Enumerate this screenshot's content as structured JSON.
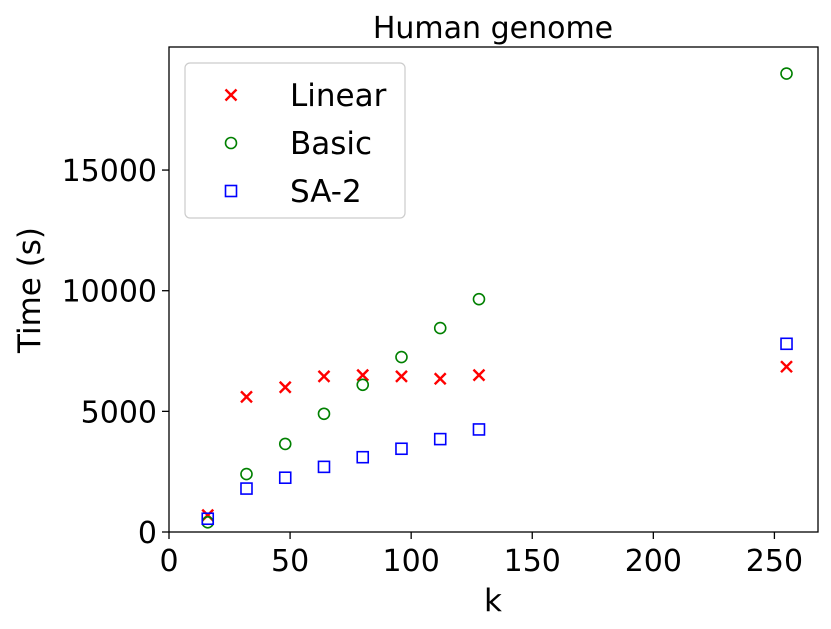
{
  "chart_data": {
    "type": "scatter",
    "title": "Human genome",
    "xlabel": "k",
    "ylabel": "Time (s)",
    "xlim": [
      0,
      268
    ],
    "ylim": [
      0,
      20100
    ],
    "xticks": [
      0,
      50,
      100,
      150,
      200,
      250
    ],
    "yticks": [
      0,
      5000,
      10000,
      15000
    ],
    "grid": false,
    "legend_position": "top-left",
    "series": [
      {
        "name": "Linear",
        "marker": "x",
        "color": "#ff0000",
        "points": [
          [
            16,
            700
          ],
          [
            32,
            5600
          ],
          [
            48,
            6000
          ],
          [
            64,
            6450
          ],
          [
            80,
            6500
          ],
          [
            96,
            6450
          ],
          [
            112,
            6350
          ],
          [
            128,
            6500
          ],
          [
            255,
            6850
          ]
        ]
      },
      {
        "name": "Basic",
        "marker": "circle",
        "color": "#008000",
        "points": [
          [
            16,
            400
          ],
          [
            32,
            2400
          ],
          [
            48,
            3650
          ],
          [
            64,
            4900
          ],
          [
            80,
            6100
          ],
          [
            96,
            7250
          ],
          [
            112,
            8450
          ],
          [
            128,
            9650
          ],
          [
            255,
            19000
          ]
        ]
      },
      {
        "name": "SA-2",
        "marker": "square",
        "color": "#0000ff",
        "points": [
          [
            16,
            550
          ],
          [
            32,
            1800
          ],
          [
            48,
            2250
          ],
          [
            64,
            2700
          ],
          [
            80,
            3100
          ],
          [
            96,
            3450
          ],
          [
            112,
            3850
          ],
          [
            128,
            4250
          ],
          [
            255,
            7800
          ]
        ]
      }
    ]
  }
}
